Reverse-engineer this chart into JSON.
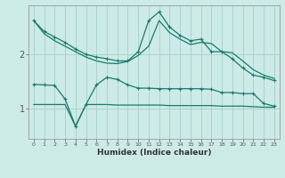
{
  "xlabel": "Humidex (Indice chaleur)",
  "bg_color": "#cceae6",
  "line_color": "#1a7a6e",
  "grid_color": "#aad4cf",
  "x_ticks": [
    0,
    1,
    2,
    3,
    4,
    5,
    6,
    7,
    8,
    9,
    10,
    11,
    12,
    13,
    14,
    15,
    16,
    17,
    18,
    19,
    20,
    21,
    22,
    23
  ],
  "ylim": [
    0.45,
    2.9
  ],
  "yticks": [
    1,
    2
  ],
  "line1_y": [
    2.62,
    2.38,
    2.25,
    2.15,
    2.05,
    1.95,
    1.88,
    1.84,
    1.83,
    1.87,
    1.98,
    2.15,
    2.62,
    2.4,
    2.28,
    2.18,
    2.22,
    2.2,
    2.05,
    2.03,
    1.88,
    1.72,
    1.62,
    1.56
  ],
  "line2_y": [
    2.62,
    2.42,
    2.32,
    2.22,
    2.1,
    2.0,
    1.95,
    1.92,
    1.88,
    1.88,
    2.05,
    2.62,
    2.78,
    2.5,
    2.35,
    2.25,
    2.28,
    2.05,
    2.05,
    1.92,
    1.75,
    1.62,
    1.58,
    1.52
  ],
  "line3_y": [
    1.45,
    1.44,
    1.43,
    1.18,
    0.68,
    1.08,
    1.44,
    1.58,
    1.54,
    1.44,
    1.38,
    1.38,
    1.37,
    1.37,
    1.37,
    1.37,
    1.37,
    1.36,
    1.3,
    1.3,
    1.28,
    1.28,
    1.1,
    1.05
  ],
  "line4_y": [
    1.08,
    1.08,
    1.08,
    1.08,
    0.68,
    1.08,
    1.08,
    1.08,
    1.07,
    1.07,
    1.07,
    1.07,
    1.07,
    1.06,
    1.06,
    1.06,
    1.06,
    1.06,
    1.05,
    1.05,
    1.05,
    1.04,
    1.03,
    1.03
  ]
}
